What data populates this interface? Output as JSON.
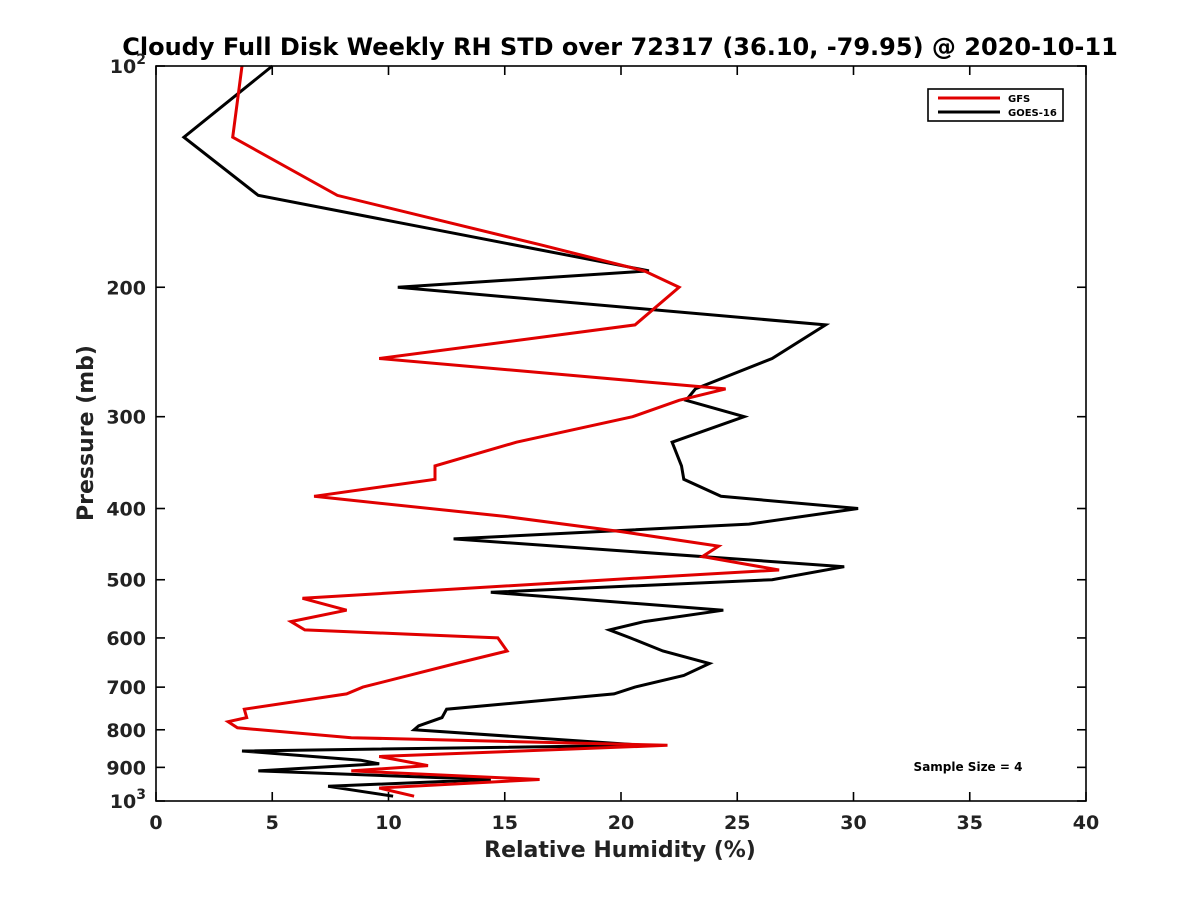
{
  "chart_data": {
    "type": "line",
    "title": "Cloudy Full Disk Weekly RH STD over 72317 (36.10, -79.95) @ 2020-10-11",
    "xlabel": "Relative Humidity (%)",
    "ylabel": "Pressure (mb)",
    "xlim": [
      0,
      40
    ],
    "ylim": [
      100,
      1000
    ],
    "yscale": "log",
    "y_reversed": true,
    "grid": false,
    "legend_position": "top-right",
    "x_ticks": [
      "0",
      "5",
      "10",
      "15",
      "20",
      "25",
      "30",
      "35",
      "40"
    ],
    "y_ticks": [
      {
        "value": 100,
        "base": "10",
        "exp": "2"
      },
      {
        "value": 200,
        "label": "200"
      },
      {
        "value": 300,
        "label": "300"
      },
      {
        "value": 400,
        "label": "400"
      },
      {
        "value": 500,
        "label": "500"
      },
      {
        "value": 600,
        "label": "600"
      },
      {
        "value": 700,
        "label": "700"
      },
      {
        "value": 800,
        "label": "800"
      },
      {
        "value": 900,
        "label": "900"
      },
      {
        "value": 1000,
        "base": "10",
        "exp": "3"
      }
    ],
    "annotation": "Sample Size = 4",
    "series": [
      {
        "name": "GFS",
        "color": "#e00000",
        "points": [
          [
            3.7,
            100
          ],
          [
            3.3,
            125
          ],
          [
            7.8,
            150
          ],
          [
            16.5,
            175
          ],
          [
            21.0,
            190
          ],
          [
            22.5,
            200
          ],
          [
            20.6,
            225
          ],
          [
            9.6,
            250
          ],
          [
            24.5,
            275
          ],
          [
            22.5,
            285
          ],
          [
            20.5,
            300
          ],
          [
            15.5,
            325
          ],
          [
            12.0,
            350
          ],
          [
            12.0,
            365
          ],
          [
            6.8,
            385
          ],
          [
            15.0,
            410
          ],
          [
            20.0,
            430
          ],
          [
            24.2,
            450
          ],
          [
            23.5,
            465
          ],
          [
            26.8,
            485
          ],
          [
            19.5,
            500
          ],
          [
            6.3,
            530
          ],
          [
            8.2,
            550
          ],
          [
            5.8,
            570
          ],
          [
            6.4,
            585
          ],
          [
            14.7,
            600
          ],
          [
            15.1,
            625
          ],
          [
            12.9,
            650
          ],
          [
            8.9,
            700
          ],
          [
            8.2,
            715
          ],
          [
            3.8,
            750
          ],
          [
            3.9,
            770
          ],
          [
            3.1,
            780
          ],
          [
            3.5,
            795
          ],
          [
            8.4,
            820
          ],
          [
            22.0,
            840
          ],
          [
            9.6,
            870
          ],
          [
            11.7,
            895
          ],
          [
            8.4,
            910
          ],
          [
            16.5,
            935
          ],
          [
            9.6,
            960
          ],
          [
            11.1,
            985
          ]
        ]
      },
      {
        "name": "GOES-16",
        "color": "#000000",
        "points": [
          [
            5.0,
            100
          ],
          [
            1.2,
            125
          ],
          [
            4.4,
            150
          ],
          [
            21.2,
            190
          ],
          [
            10.4,
            200
          ],
          [
            28.8,
            225
          ],
          [
            26.5,
            250
          ],
          [
            23.2,
            275
          ],
          [
            22.8,
            285
          ],
          [
            25.3,
            300
          ],
          [
            22.2,
            325
          ],
          [
            22.6,
            350
          ],
          [
            22.7,
            365
          ],
          [
            24.3,
            385
          ],
          [
            30.2,
            400
          ],
          [
            25.5,
            420
          ],
          [
            12.8,
            440
          ],
          [
            29.6,
            480
          ],
          [
            26.5,
            500
          ],
          [
            14.4,
            520
          ],
          [
            24.4,
            550
          ],
          [
            21.0,
            570
          ],
          [
            19.5,
            585
          ],
          [
            20.4,
            600
          ],
          [
            21.8,
            625
          ],
          [
            23.8,
            650
          ],
          [
            22.7,
            675
          ],
          [
            20.6,
            700
          ],
          [
            19.7,
            715
          ],
          [
            12.5,
            750
          ],
          [
            12.3,
            770
          ],
          [
            11.3,
            790
          ],
          [
            11.1,
            800
          ],
          [
            21.0,
            840
          ],
          [
            3.7,
            855
          ],
          [
            8.8,
            880
          ],
          [
            9.6,
            890
          ],
          [
            4.4,
            910
          ],
          [
            14.4,
            935
          ],
          [
            7.4,
            955
          ],
          [
            10.2,
            985
          ]
        ]
      }
    ]
  }
}
